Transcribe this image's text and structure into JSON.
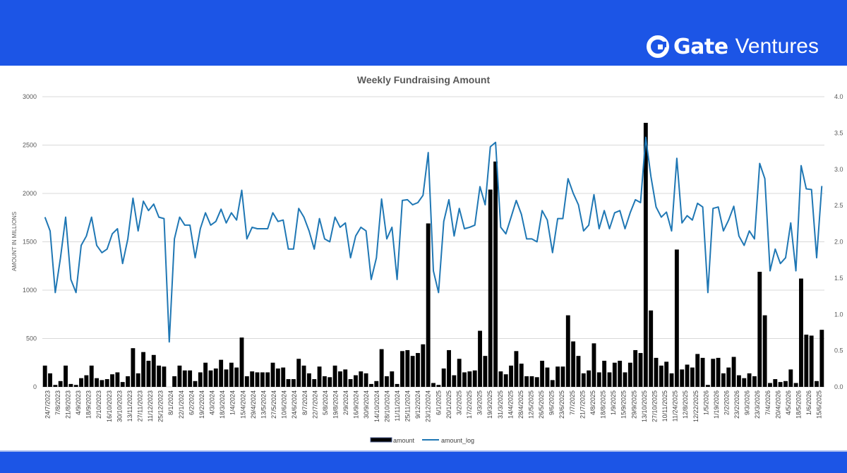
{
  "header": {
    "brand_name": "Gate",
    "brand_sub": "Ventures",
    "brand_color": "#1c55e6"
  },
  "chart_data": {
    "type": "bar+line",
    "title": "Weekly Fundraising Amount",
    "ylabel": "AMOUNT IN MILLIONS",
    "ylim": [
      0,
      3000
    ],
    "y2lim": [
      0,
      4
    ],
    "yticks": [
      "0",
      "500",
      "1000",
      "1500",
      "2000",
      "2500",
      "3000"
    ],
    "y2ticks": [
      "0.0",
      "0.5",
      "1.0",
      "1.5",
      "2.0",
      "2.5",
      "3.0",
      "3.5",
      "4.0"
    ],
    "grid": true,
    "legend_position": "bottom-center",
    "x_tick_labels": [
      "24/7/2023",
      "7/8/2023",
      "21/8/2023",
      "4/9/2023",
      "18/9/2023",
      "2/10/2023",
      "16/10/2023",
      "30/10/2023",
      "13/11/2023",
      "27/11/2023",
      "11/12/2023",
      "25/12/2023",
      "8/1/2024",
      "22/1/2024",
      "6/2/2024",
      "19/2/2024",
      "4/3/2024",
      "18/3/2024",
      "1/4/2024",
      "15/4/2024",
      "29/4/2024",
      "13/5/2024",
      "27/5/2024",
      "10/6/2024",
      "24/6/2024",
      "8/7/2024",
      "22/7/2024",
      "5/8/2024",
      "19/8/2024",
      "2/9/2024",
      "16/9/2024",
      "30/9/2024",
      "14/10/2024",
      "28/10/2024",
      "11/11/2024",
      "25/11/2024",
      "9/12/2024",
      "23/12/2024",
      "6/1/2025",
      "20/1/2025",
      "3/2/2025",
      "17/2/2025",
      "3/3/2025",
      "19/3/2025",
      "31/3/2025",
      "14/4/2025",
      "28/4/2025",
      "12/5/2025",
      "26/5/2025",
      "9/6/2025",
      "23/6/2025",
      "7/7/2025",
      "21/7/2025",
      "4/8/2025",
      "18/8/2025",
      "1/9/2025",
      "15/9/2025",
      "29/9/2025",
      "13/10/2025",
      "27/10/2025",
      "10/11/2025",
      "11/24/2025",
      "12/8/2025",
      "12/22/2025",
      "1/5/2026",
      "1/19/2026",
      "2/2/2026",
      "23/2/2026",
      "9/3/2026",
      "23/3/2026",
      "7/4/2026",
      "20/4/2026",
      "4/5/2026",
      "18/5/2026",
      "1/6/2026",
      "15/6/2025"
    ],
    "series": [
      {
        "name": "amount",
        "type": "bar",
        "color": "#000000",
        "values": [
          220,
          140,
          20,
          60,
          220,
          30,
          20,
          90,
          120,
          220,
          90,
          70,
          80,
          130,
          150,
          50,
          110,
          400,
          140,
          360,
          270,
          330,
          220,
          210,
          0,
          110,
          220,
          170,
          170,
          60,
          150,
          250,
          170,
          190,
          280,
          180,
          250,
          200,
          510,
          110,
          160,
          150,
          150,
          150,
          250,
          190,
          200,
          80,
          80,
          290,
          220,
          140,
          80,
          210,
          110,
          100,
          220,
          160,
          180,
          80,
          120,
          160,
          140,
          30,
          60,
          390,
          110,
          160,
          30,
          370,
          380,
          320,
          350,
          440,
          1690,
          40,
          20,
          190,
          380,
          120,
          290,
          150,
          160,
          170,
          580,
          320,
          2040,
          2330,
          160,
          130,
          220,
          370,
          240,
          110,
          110,
          100,
          270,
          200,
          70,
          210,
          210,
          740,
          470,
          320,
          140,
          170,
          450,
          150,
          270,
          150,
          250,
          270,
          150,
          250,
          380,
          350,
          2730,
          790,
          300,
          220,
          260,
          140,
          1420,
          180,
          230,
          200,
          340,
          300,
          20,
          290,
          300,
          140,
          200,
          310,
          120,
          90,
          140,
          110,
          1190,
          740,
          40,
          80,
          50,
          60,
          180,
          40,
          1120,
          540,
          530,
          60,
          590
        ]
      },
      {
        "name": "amount_log",
        "type": "line",
        "color": "#1f77b4",
        "values": [
          2.34,
          2.15,
          1.3,
          1.78,
          2.34,
          1.48,
          1.3,
          1.95,
          2.08,
          2.34,
          1.95,
          1.85,
          1.9,
          2.11,
          2.18,
          1.7,
          2.04,
          2.6,
          2.15,
          2.56,
          2.43,
          2.52,
          2.34,
          2.32,
          0.62,
          2.04,
          2.34,
          2.23,
          2.23,
          1.78,
          2.18,
          2.4,
          2.23,
          2.28,
          2.45,
          2.26,
          2.4,
          2.3,
          2.71,
          2.04,
          2.2,
          2.18,
          2.18,
          2.18,
          2.4,
          2.28,
          2.3,
          1.9,
          1.9,
          2.46,
          2.34,
          2.15,
          1.9,
          2.32,
          2.04,
          2.0,
          2.34,
          2.2,
          2.26,
          1.78,
          2.08,
          2.2,
          2.15,
          1.48,
          1.78,
          2.59,
          2.04,
          2.2,
          1.48,
          2.57,
          2.58,
          2.51,
          2.54,
          2.64,
          3.23,
          1.6,
          1.3,
          2.28,
          2.58,
          2.08,
          2.46,
          2.18,
          2.2,
          2.23,
          2.76,
          2.51,
          3.31,
          3.37,
          2.2,
          2.11,
          2.34,
          2.57,
          2.38,
          2.04,
          2.04,
          2.0,
          2.43,
          2.3,
          1.85,
          2.32,
          2.32,
          2.87,
          2.67,
          2.51,
          2.15,
          2.23,
          2.65,
          2.18,
          2.43,
          2.18,
          2.4,
          2.43,
          2.18,
          2.4,
          2.58,
          2.54,
          3.44,
          2.9,
          2.48,
          2.34,
          2.41,
          2.15,
          3.15,
          2.26,
          2.36,
          2.3,
          2.53,
          2.48,
          1.3,
          2.46,
          2.48,
          2.15,
          2.3,
          2.49,
          2.08,
          1.95,
          2.15,
          2.04,
          3.08,
          2.87,
          1.6,
          1.9,
          1.7,
          1.78,
          2.26,
          1.6,
          3.05,
          2.73,
          2.72,
          1.78,
          2.77
        ]
      }
    ]
  }
}
